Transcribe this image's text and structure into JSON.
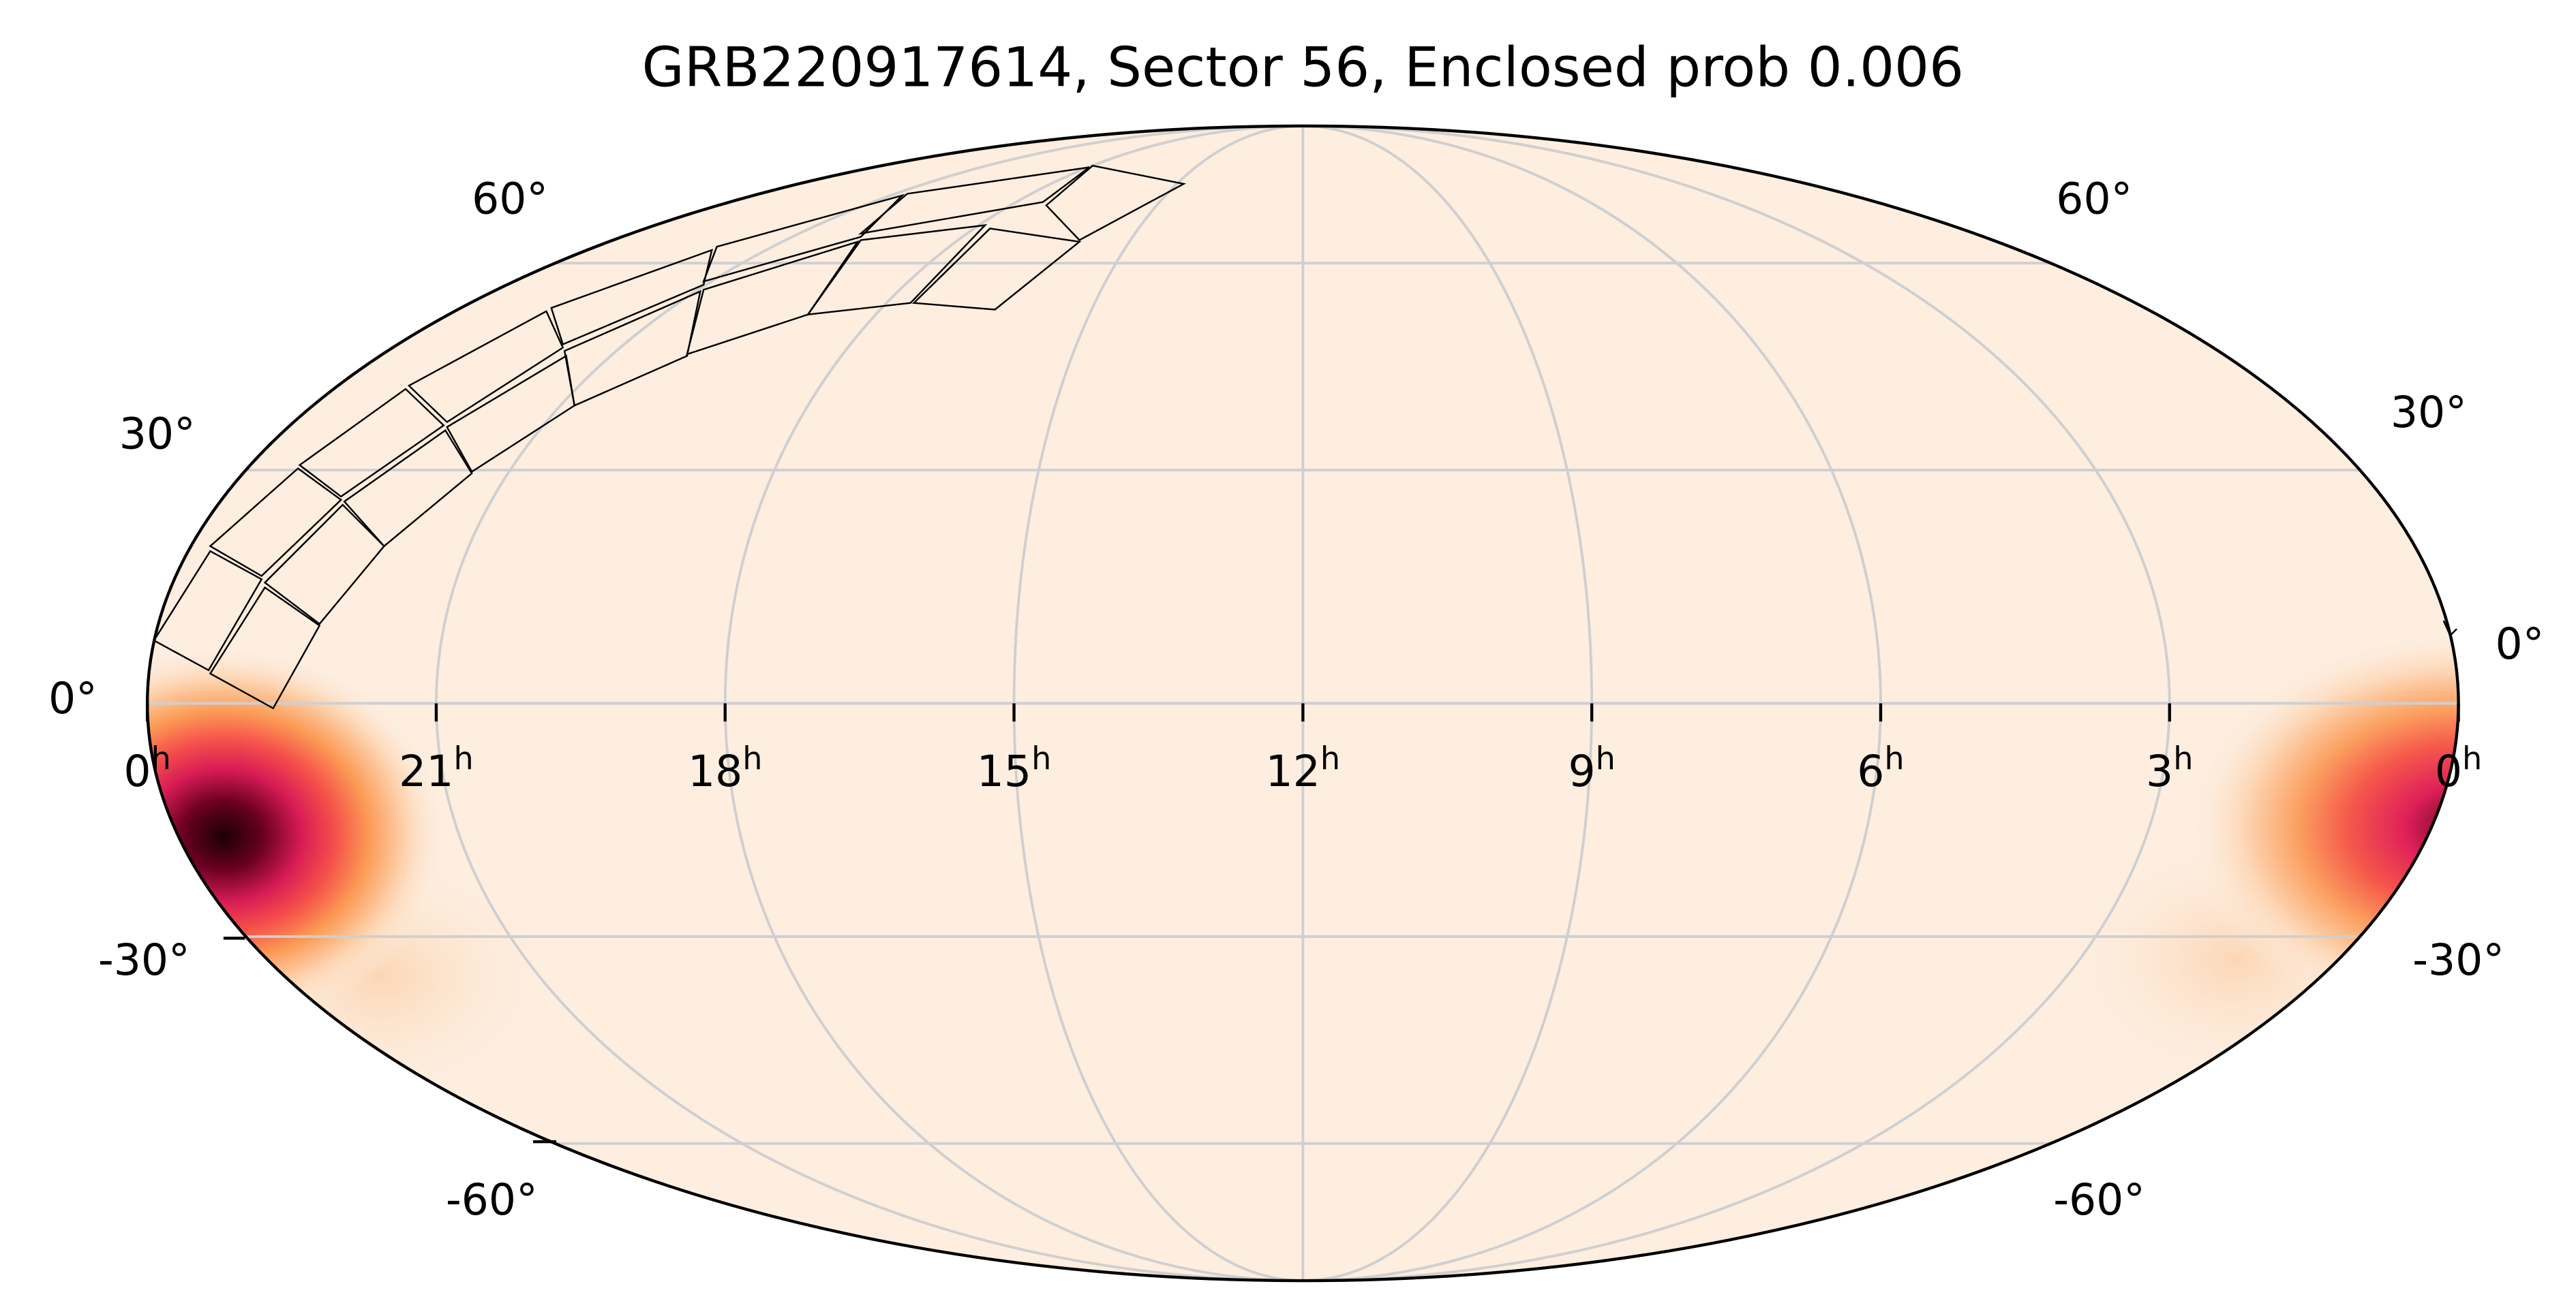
{
  "chart_data": {
    "type": "mollweide",
    "title": "GRB220917614, Sector 56, Enclosed prob 0.006",
    "xlim": [
      24,
      0
    ],
    "ylim": [
      -90,
      90
    ],
    "xticks": [
      {
        "value": 24,
        "label": "0h"
      },
      {
        "value": 21,
        "label": "21h"
      },
      {
        "value": 18,
        "label": "18h"
      },
      {
        "value": 15,
        "label": "15h"
      },
      {
        "value": 12,
        "label": "12h"
      },
      {
        "value": 9,
        "label": "9h"
      },
      {
        "value": 6,
        "label": "6h"
      },
      {
        "value": 3,
        "label": "3h"
      },
      {
        "value": 0,
        "label": "0h"
      }
    ],
    "yticks": [
      {
        "value": 60,
        "label": "60°"
      },
      {
        "value": 30,
        "label": "30°"
      },
      {
        "value": 0,
        "label": "0°"
      },
      {
        "value": -30,
        "label": "-30°"
      },
      {
        "value": -60,
        "label": "-60°"
      }
    ],
    "grid": true
  }
}
